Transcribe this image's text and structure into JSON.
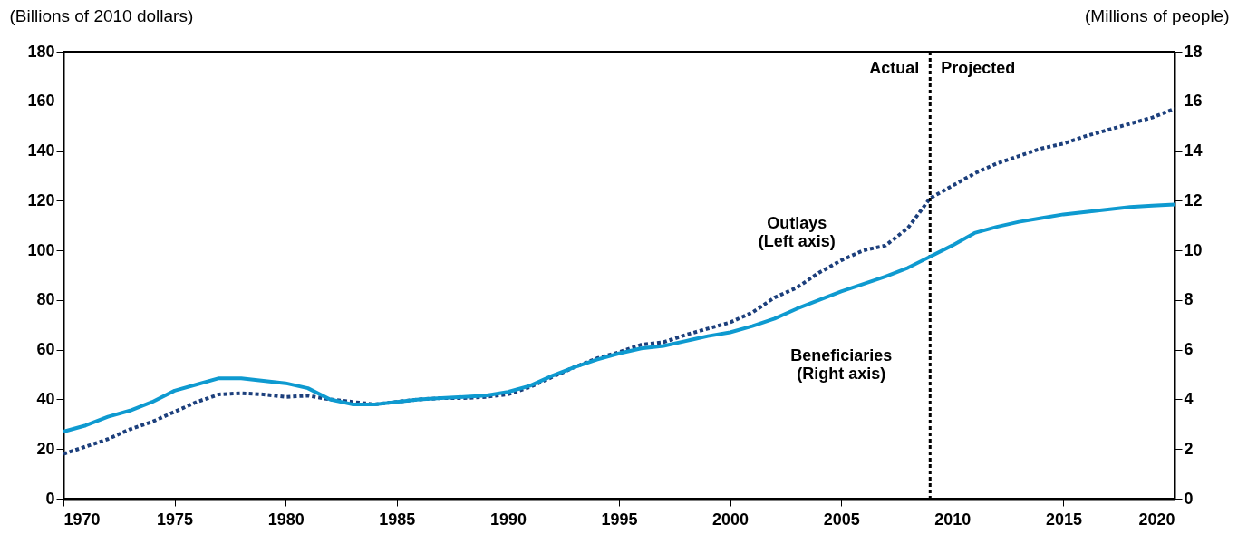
{
  "chart_data": {
    "type": "line",
    "ylabel": "(Billions of 2010 dollars)",
    "y2label": "(Millions of people)",
    "x": [
      1970,
      1971,
      1972,
      1973,
      1974,
      1975,
      1976,
      1977,
      1978,
      1979,
      1980,
      1981,
      1982,
      1983,
      1984,
      1985,
      1986,
      1987,
      1988,
      1989,
      1990,
      1991,
      1992,
      1993,
      1994,
      1995,
      1996,
      1997,
      1998,
      1999,
      2000,
      2001,
      2002,
      2003,
      2004,
      2005,
      2006,
      2007,
      2008,
      2009,
      2010,
      2011,
      2012,
      2013,
      2014,
      2015,
      2016,
      2017,
      2018,
      2019,
      2020
    ],
    "series": [
      {
        "name": "Outlays\n(Left axis)",
        "color": "#1c3f7c",
        "line_style": "dotted",
        "values": [
          18,
          21,
          24,
          28,
          31,
          35,
          39,
          42,
          42.5,
          42,
          41,
          41.5,
          40,
          39,
          38,
          39,
          40,
          40.5,
          40.5,
          41,
          42,
          45,
          49,
          53,
          56.5,
          59,
          62,
          63,
          66,
          68.5,
          71,
          75,
          81,
          85,
          91,
          96,
          100,
          102,
          109,
          121,
          126,
          131,
          135,
          138,
          141,
          143,
          146,
          148.5,
          151,
          153.5,
          157
        ]
      },
      {
        "name": "Beneficiaries\n(Right axis)",
        "color": "#0e9ad0",
        "line_style": "solid",
        "axis": "y2",
        "values": [
          2.7,
          2.95,
          3.3,
          3.55,
          3.9,
          4.35,
          4.6,
          4.85,
          4.85,
          4.75,
          4.65,
          4.45,
          4.0,
          3.8,
          3.8,
          3.9,
          4.0,
          4.05,
          4.1,
          4.15,
          4.3,
          4.55,
          4.95,
          5.3,
          5.6,
          5.85,
          6.05,
          6.15,
          6.35,
          6.55,
          6.7,
          6.95,
          7.25,
          7.65,
          8.0,
          8.35,
          8.65,
          8.95,
          9.3,
          9.75,
          10.2,
          10.7,
          10.95,
          11.15,
          11.3,
          11.45,
          11.55,
          11.65,
          11.75,
          11.8,
          11.85
        ]
      }
    ],
    "xlim": [
      1970,
      2020
    ],
    "xticks": [
      1970,
      1975,
      1980,
      1985,
      1990,
      1995,
      2000,
      2005,
      2010,
      2015,
      2020
    ],
    "ylim": [
      0,
      180
    ],
    "yticks": [
      0,
      20,
      40,
      60,
      80,
      100,
      120,
      140,
      160,
      180
    ],
    "y2lim": [
      0,
      18
    ],
    "y2ticks": [
      0,
      2,
      4,
      6,
      8,
      10,
      12,
      14,
      16,
      18
    ],
    "ref_lines": [
      {
        "axis": "x",
        "value": 2009,
        "color": "#000000",
        "line_style": "dotted"
      }
    ],
    "annotations": [
      {
        "text": "Actual",
        "x": 2009,
        "y": 173
      },
      {
        "text": "Projected",
        "x": 2009,
        "y": 173
      }
    ],
    "grid": false,
    "marker": "none"
  }
}
